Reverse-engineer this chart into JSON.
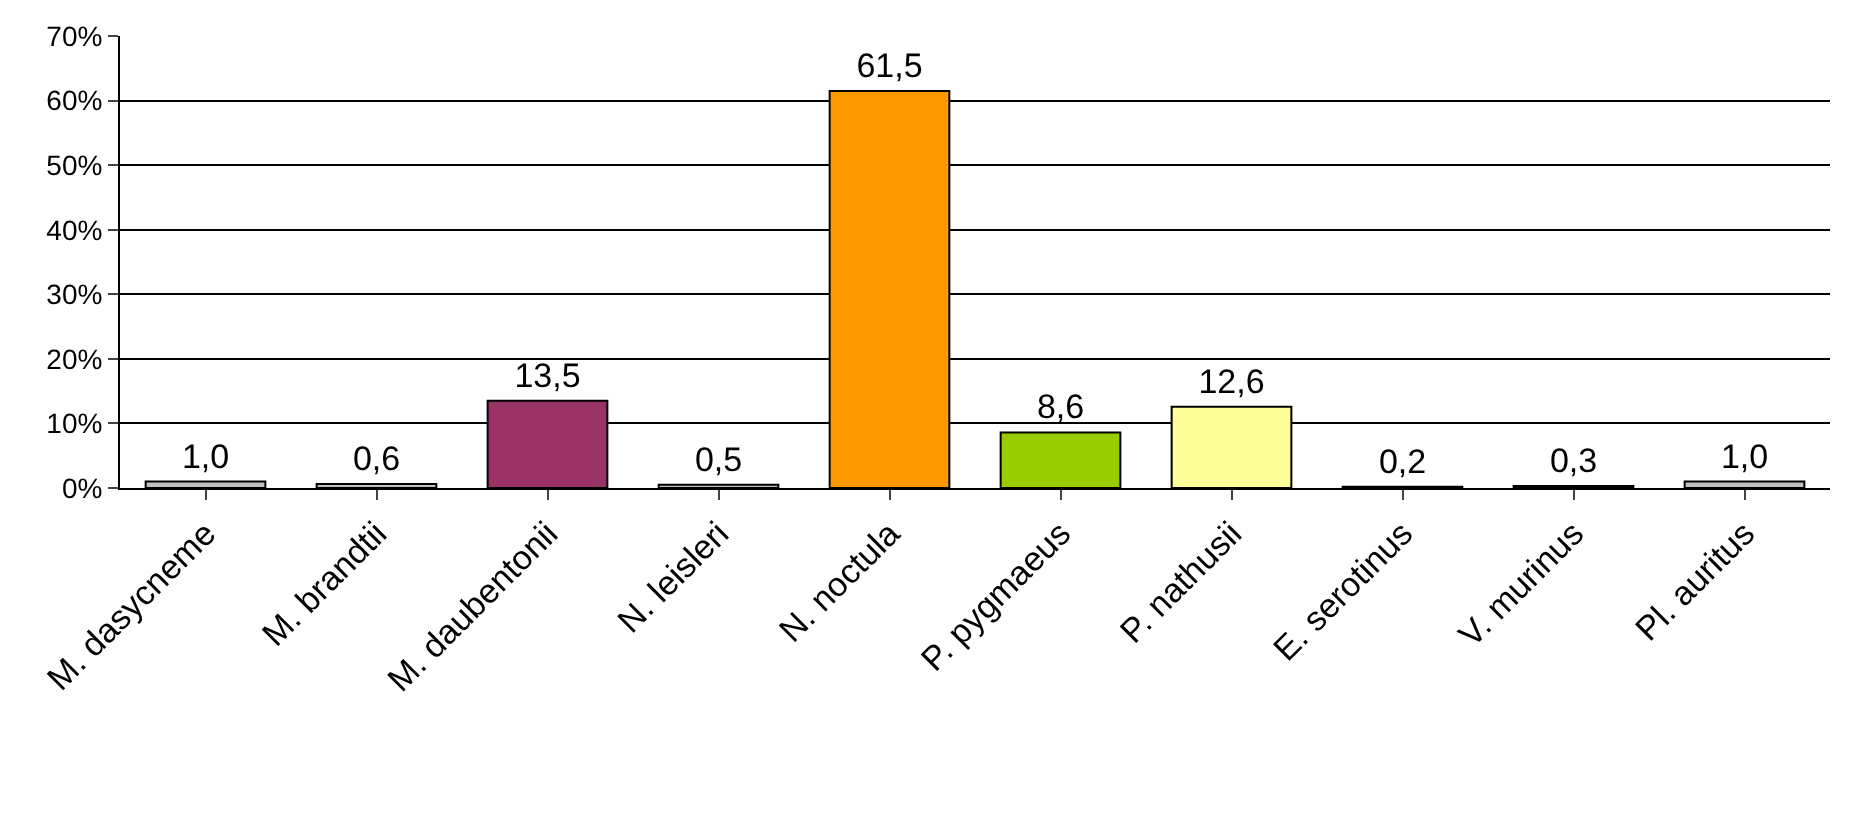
{
  "chart_data": {
    "type": "bar",
    "categories": [
      "M. dasycneme",
      "M. brandtii",
      "M. daubentonii",
      "N. leisleri",
      "N. noctula",
      "P. pygmaeus",
      "P. nathusii",
      "E. serotinus",
      "V. murinus",
      "Pl. auritus"
    ],
    "values": [
      1.0,
      0.6,
      13.5,
      0.5,
      61.5,
      8.6,
      12.6,
      0.2,
      0.3,
      1.0
    ],
    "value_labels": [
      "1,0",
      "0,6",
      "13,5",
      "0,5",
      "61,5",
      "8,6",
      "12,6",
      "0,2",
      "0,3",
      "1,0"
    ],
    "colors": [
      "#c0c0c0",
      "#c0c0c0",
      "#993366",
      "#c0c0c0",
      "#ff9900",
      "#99cc00",
      "#ffff99",
      "#c0c0c0",
      "#c0c0c0",
      "#c0c0c0"
    ],
    "ylim": [
      0,
      70
    ],
    "yticks": [
      {
        "value": 0,
        "label": "0%"
      },
      {
        "value": 10,
        "label": "10%"
      },
      {
        "value": 20,
        "label": "20%"
      },
      {
        "value": 30,
        "label": "30%"
      },
      {
        "value": 40,
        "label": "40%"
      },
      {
        "value": 50,
        "label": "50%"
      },
      {
        "value": 60,
        "label": "60%"
      },
      {
        "value": 70,
        "label": "70%"
      }
    ],
    "grid": "y",
    "legend": false
  }
}
